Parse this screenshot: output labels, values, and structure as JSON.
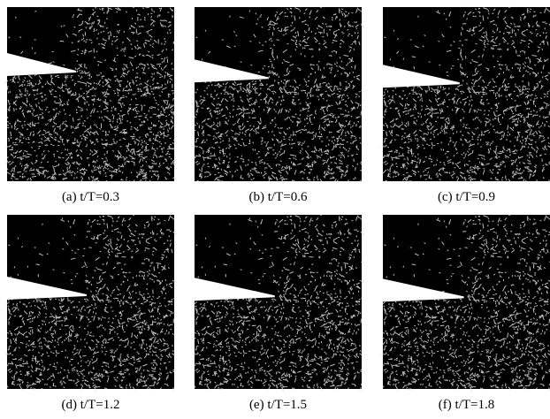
{
  "figure": {
    "panels": [
      {
        "caption": "(a) t/T=0.3"
      },
      {
        "caption": "(b) t/T=0.6"
      },
      {
        "caption": "(c) t/T=0.9"
      },
      {
        "caption": "(d) t/T=1.2"
      },
      {
        "caption": "(e) t/T=1.5"
      },
      {
        "caption": "(f) t/T=1.8"
      }
    ]
  }
}
